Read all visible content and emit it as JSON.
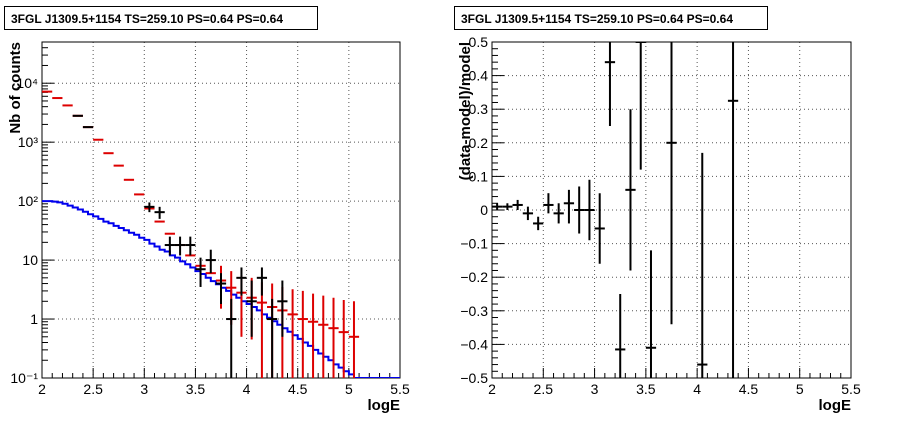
{
  "left_panel": {
    "title": "3FGL J1309.5+1154 TS=259.10 PS=0.64 PS=0.64"
  },
  "right_panel": {
    "title": "3FGL J1309.5+1154 TS=259.10 PS=0.64 PS=0.64"
  },
  "chart_data": [
    {
      "type": "scatter",
      "xlabel": "logE",
      "ylabel": "Nb of counts",
      "xlim": [
        2,
        5.5
      ],
      "ylim": [
        0.1,
        50000
      ],
      "log_y": true,
      "grid": true,
      "x_ticks": [
        2,
        2.5,
        3,
        3.5,
        4,
        4.5,
        5,
        5.5
      ],
      "x_tick_labels": [
        "2",
        "2.5",
        "3",
        "3.5",
        "4",
        "4.5",
        "5",
        "5.5"
      ],
      "y_ticks": [
        0.1,
        1,
        10,
        100,
        1000,
        10000
      ],
      "y_tick_labels": [
        "10⁻¹",
        "1",
        "10",
        "10²",
        "10³",
        "10⁴"
      ],
      "colors": {
        "data": "#000000",
        "model_sum": "#dd0000",
        "model_source": "#0000ee"
      },
      "model_source_steps": {
        "x": [
          2.0,
          2.05,
          2.1,
          2.15,
          2.2,
          2.25,
          2.3,
          2.35,
          2.4,
          2.45,
          2.5,
          2.55,
          2.6,
          2.65,
          2.7,
          2.75,
          2.8,
          2.85,
          2.9,
          2.95,
          3.0,
          3.05,
          3.1,
          3.15,
          3.2,
          3.25,
          3.3,
          3.35,
          3.4,
          3.45,
          3.5,
          3.55,
          3.6,
          3.65,
          3.7,
          3.75,
          3.8,
          3.85,
          3.9,
          3.95,
          4.0,
          4.05,
          4.1,
          4.15,
          4.2,
          4.25,
          4.3,
          4.35,
          4.4,
          4.45,
          4.5,
          4.55,
          4.6,
          4.65,
          4.7,
          4.75,
          4.8,
          4.85,
          4.9,
          4.95,
          5.0,
          5.05,
          5.1,
          5.15,
          5.2,
          5.25,
          5.3,
          5.35,
          5.4,
          5.45
        ],
        "y": [
          100,
          100,
          98,
          95,
          90,
          84,
          78,
          72,
          66,
          60,
          55,
          50,
          45,
          42,
          38,
          35,
          32,
          29,
          27,
          24,
          22,
          19,
          17,
          15,
          14,
          12,
          11,
          9.5,
          8.5,
          7.5,
          6.5,
          5.8,
          5.0,
          4.4,
          3.9,
          3.4,
          3.0,
          2.6,
          2.3,
          2.0,
          1.8,
          1.6,
          1.4,
          1.2,
          1.05,
          0.92,
          0.8,
          0.7,
          0.61,
          0.53,
          0.46,
          0.4,
          0.35,
          0.3,
          0.26,
          0.23,
          0.2,
          0.17,
          0.15,
          0.13,
          0.115,
          0.1,
          0.1,
          0.1,
          0.1,
          0.1,
          0.1,
          0.1,
          0.1,
          0.1
        ]
      },
      "model_sum_points": {
        "x": [
          2.05,
          2.15,
          2.25,
          2.35,
          2.45,
          2.55,
          2.65,
          2.75,
          2.85,
          2.95,
          3.05,
          3.15,
          3.25,
          3.35,
          3.45,
          3.55,
          3.65,
          3.75,
          3.85,
          3.95,
          4.05,
          4.15,
          4.25,
          4.35,
          4.45,
          4.55,
          4.65,
          4.75,
          4.85,
          4.95,
          5.05
        ],
        "y": [
          7200,
          5600,
          4200,
          2800,
          1800,
          1100,
          650,
          400,
          230,
          130,
          75,
          45,
          28,
          18,
          12,
          8,
          6,
          4.5,
          3.4,
          2.8,
          2.3,
          1.9,
          1.6,
          1.4,
          1.2,
          1.0,
          0.9,
          0.8,
          0.7,
          0.6,
          0.5
        ],
        "y_low": [
          null,
          null,
          null,
          null,
          null,
          null,
          null,
          null,
          null,
          null,
          null,
          null,
          null,
          null,
          null,
          null,
          null,
          1.5,
          0.8,
          0.5,
          0.45,
          0.1,
          0.1,
          0.1,
          0.1,
          0.1,
          0.1,
          0.1,
          0.1,
          0.1,
          0.1
        ],
        "y_high": [
          null,
          null,
          null,
          null,
          null,
          null,
          null,
          null,
          null,
          null,
          null,
          null,
          null,
          null,
          null,
          null,
          null,
          8,
          6.5,
          5.5,
          5,
          4.2,
          4,
          3.5,
          3.2,
          3,
          2.7,
          2.5,
          2.3,
          2.1,
          2
        ]
      },
      "data_points": {
        "x": [
          2.35,
          2.45,
          3.05,
          3.15,
          3.25,
          3.35,
          3.45,
          3.55,
          3.65,
          3.75,
          3.85,
          3.95,
          4.05,
          4.15,
          4.25,
          4.35
        ],
        "y": [
          2800,
          1800,
          80,
          65,
          18,
          18,
          18,
          7,
          10,
          4,
          1,
          5,
          2,
          5,
          1,
          2
        ],
        "y_low": [
          null,
          null,
          65,
          50,
          12,
          12,
          12,
          3.5,
          6,
          1.8,
          0.1,
          2.5,
          0.5,
          2.5,
          0.1,
          0.5
        ],
        "y_high": [
          null,
          null,
          95,
          80,
          25,
          25,
          25,
          11,
          15,
          6,
          2.2,
          7.5,
          4.5,
          7.5,
          2.2,
          4.5
        ]
      }
    },
    {
      "type": "scatter",
      "xlabel": "logE",
      "ylabel": "(data-model)/model",
      "xlim": [
        2,
        5.5
      ],
      "ylim": [
        -0.5,
        0.5
      ],
      "grid": true,
      "x_ticks": [
        2,
        2.5,
        3,
        3.5,
        4,
        4.5,
        5,
        5.5
      ],
      "x_tick_labels": [
        "2",
        "2.5",
        "3",
        "3.5",
        "4",
        "4.5",
        "5",
        "5.5"
      ],
      "y_ticks": [
        -0.5,
        -0.4,
        -0.3,
        -0.2,
        -0.1,
        0,
        0.1,
        0.2,
        0.3,
        0.4,
        0.5
      ],
      "y_tick_labels": [
        "−0.5",
        "−0.4",
        "−0.3",
        "−0.2",
        "−0.1",
        "0",
        "0.1",
        "0.2",
        "0.3",
        "0.4",
        "0.5"
      ],
      "points": {
        "x": [
          2.05,
          2.15,
          2.25,
          2.35,
          2.45,
          2.55,
          2.65,
          2.75,
          2.85,
          2.95,
          3.05,
          3.15,
          3.25,
          3.35,
          3.45,
          3.55,
          3.75,
          4.05,
          4.35
        ],
        "y": [
          0.01,
          0.01,
          0.015,
          -0.01,
          -0.04,
          0.015,
          -0.01,
          0.02,
          0.0,
          0.0,
          -0.055,
          0.44,
          -0.415,
          0.06,
          0.5,
          -0.41,
          0.2,
          -0.46,
          0.325
        ],
        "y_low": [
          0.0,
          0.0,
          0.0,
          -0.03,
          -0.06,
          -0.01,
          -0.04,
          -0.04,
          -0.07,
          -0.09,
          -0.16,
          0.25,
          -0.5,
          -0.18,
          0.12,
          -0.5,
          -0.34,
          -0.5,
          -0.5
        ],
        "y_high": [
          0.02,
          0.02,
          0.03,
          0.01,
          -0.02,
          0.05,
          0.02,
          0.06,
          0.07,
          0.09,
          0.05,
          0.5,
          -0.25,
          0.3,
          0.5,
          -0.12,
          0.5,
          0.17,
          0.5
        ]
      }
    }
  ]
}
